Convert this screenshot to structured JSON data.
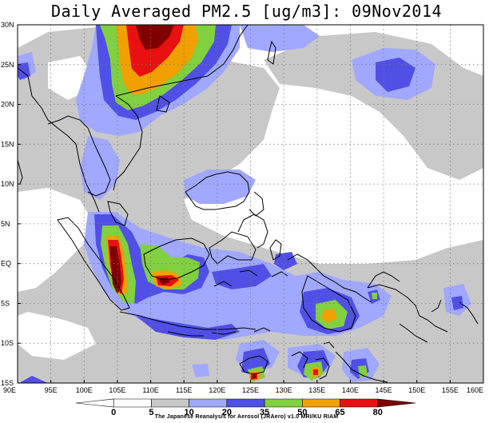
{
  "title": "Daily Averaged PM2.5 [ug/m3]: 09Nov2014",
  "credit": "The Japanese Reanalysis for Aerosol (JRAero) v1.0 MRI/KU RIAM",
  "map": {
    "lon_range": [
      90,
      160
    ],
    "lat_range": [
      -15,
      30
    ],
    "lon_ticks": [
      {
        "value": 90,
        "label": "90E"
      },
      {
        "value": 95,
        "label": "95E"
      },
      {
        "value": 100,
        "label": "100E"
      },
      {
        "value": 105,
        "label": "105E"
      },
      {
        "value": 110,
        "label": "110E"
      },
      {
        "value": 115,
        "label": "115E"
      },
      {
        "value": 120,
        "label": "120E"
      },
      {
        "value": 125,
        "label": "125E"
      },
      {
        "value": 130,
        "label": "130E"
      },
      {
        "value": 135,
        "label": "135E"
      },
      {
        "value": 140,
        "label": "140E"
      },
      {
        "value": 145,
        "label": "145E"
      },
      {
        "value": 150,
        "label": "150E"
      },
      {
        "value": 155,
        "label": "155E"
      },
      {
        "value": 160,
        "label": "160E"
      }
    ],
    "lat_ticks": [
      {
        "value": 30,
        "label": "30N"
      },
      {
        "value": 25,
        "label": "25N"
      },
      {
        "value": 20,
        "label": "20N"
      },
      {
        "value": 15,
        "label": "15N"
      },
      {
        "value": 10,
        "label": "10N"
      },
      {
        "value": 5,
        "label": "5N"
      },
      {
        "value": 0,
        "label": "EQ"
      },
      {
        "value": -5,
        "label": "5S"
      },
      {
        "value": -10,
        "label": "10S"
      },
      {
        "value": -15,
        "label": "15S"
      }
    ]
  },
  "colorbar": {
    "levels": [
      "0",
      "5",
      "10",
      "20",
      "35",
      "50",
      "65",
      "80"
    ],
    "colors": [
      "#ffffff",
      "#ffffff",
      "#c8c8c8",
      "#a0a8ff",
      "#5050e6",
      "#80d040",
      "#f0a000",
      "#e81010",
      "#800000"
    ]
  },
  "colors": {
    "c1": "#c8c8c8",
    "c2": "#a0a8ff",
    "c3": "#5050e6",
    "c4": "#80d040",
    "c5": "#f0a000",
    "c6": "#e81010",
    "c7": "#800000"
  }
}
